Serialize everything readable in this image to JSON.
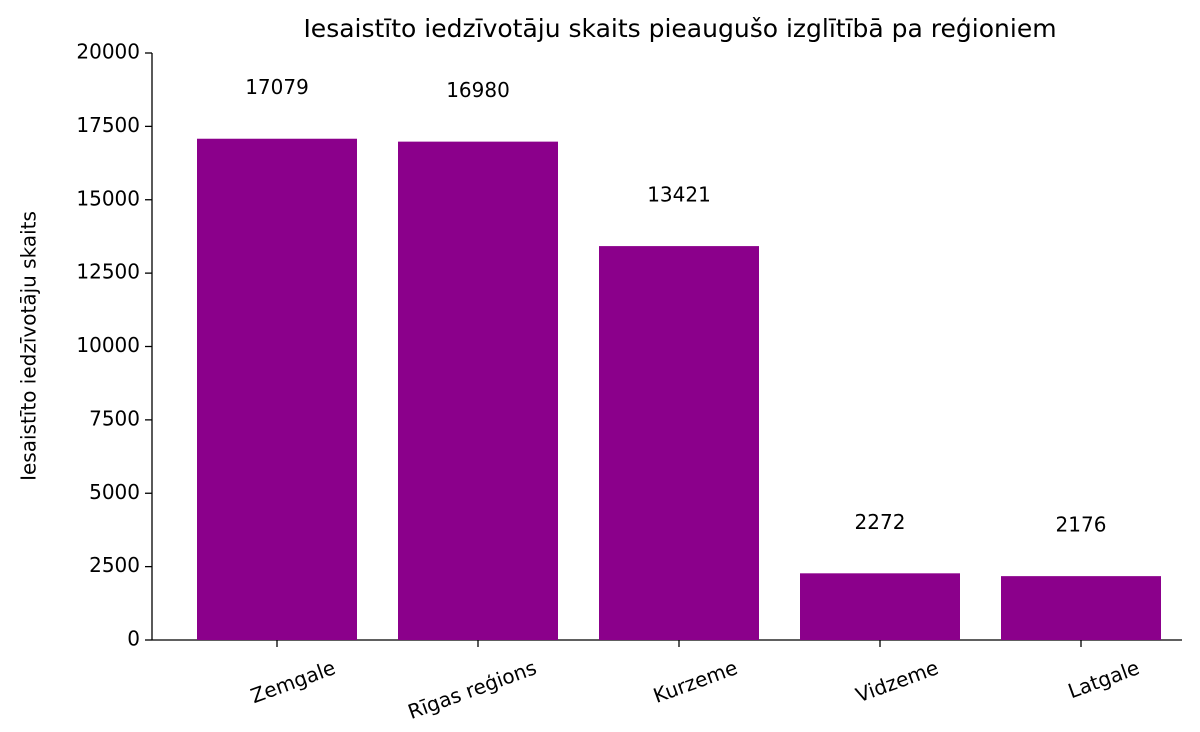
{
  "chart_data": {
    "type": "bar",
    "title": "Iesaistīto iedzīvotāju skaits pieaugušo izglītībā pa reģioniem",
    "y_label": "Iesaistīto iedzīvotāju skaits",
    "categories": [
      "Zemgale",
      "Rīgas reģions",
      "Kurzeme",
      "Vidzeme",
      "Latgale"
    ],
    "values": [
      17079,
      16980,
      13421,
      2272,
      2176
    ],
    "color": "#8b008b",
    "ylim": [
      0,
      20000
    ],
    "yticks": [
      0,
      2500,
      5000,
      7500,
      10000,
      12500,
      15000,
      17500,
      20000
    ]
  }
}
